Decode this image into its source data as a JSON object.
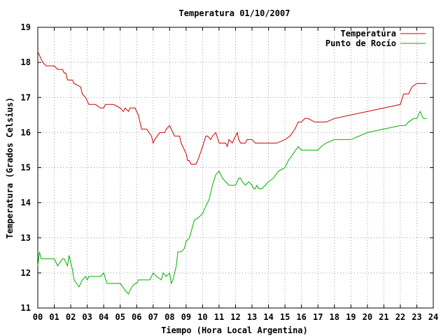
{
  "chart_data": {
    "type": "line",
    "title": "Temperatura 01/10/2007",
    "xlabel": "Tiempo (Hora Local Argentina)",
    "ylabel": "Temperatura (Grados Celsius)",
    "xlim": [
      0,
      24
    ],
    "ylim": [
      11,
      19
    ],
    "x_ticks": [
      "00",
      "01",
      "02",
      "03",
      "04",
      "05",
      "06",
      "07",
      "08",
      "09",
      "10",
      "11",
      "12",
      "13",
      "14",
      "15",
      "16",
      "17",
      "18",
      "19",
      "20",
      "21",
      "22",
      "23",
      "24"
    ],
    "y_ticks": [
      "11",
      "12",
      "13",
      "14",
      "15",
      "16",
      "17",
      "18",
      "19"
    ],
    "grid": true,
    "legend_position": "top-right",
    "series": [
      {
        "name": "Temperatura",
        "color": "#cc0000",
        "x": [
          0.0,
          0.1,
          0.2,
          0.3,
          0.5,
          0.7,
          1.0,
          1.2,
          1.5,
          1.6,
          1.7,
          1.8,
          2.1,
          2.2,
          2.6,
          2.7,
          2.9,
          3.1,
          3.2,
          3.5,
          3.8,
          4.0,
          4.1,
          4.4,
          4.6,
          5.0,
          5.2,
          5.3,
          5.5,
          5.6,
          5.9,
          6.1,
          6.3,
          6.5,
          6.6,
          6.9,
          7.0,
          7.1,
          7.4,
          7.5,
          7.6,
          7.7,
          7.8,
          8.0,
          8.3,
          8.6,
          8.7,
          9.0,
          9.1,
          9.2,
          9.3,
          9.4,
          9.5,
          9.6,
          9.7,
          10.0,
          10.2,
          10.3,
          10.5,
          10.6,
          10.8,
          11.0,
          11.1,
          11.2,
          11.3,
          11.4,
          11.5,
          11.6,
          11.8,
          12.0,
          12.1,
          12.2,
          12.3,
          12.4,
          12.5,
          12.6,
          12.7,
          12.8,
          13.0,
          13.2,
          13.3,
          13.4,
          13.6,
          13.8,
          14.0,
          14.5,
          15.0,
          15.3,
          15.6,
          15.8,
          16.0,
          16.2,
          16.4,
          16.8,
          17.0,
          17.2,
          17.5,
          18.0,
          19.0,
          20.0,
          21.0,
          22.0,
          22.2,
          22.5,
          22.7,
          23.0,
          23.2,
          23.4,
          23.6
        ],
        "values": [
          18.3,
          18.2,
          18.1,
          18.0,
          17.9,
          17.9,
          17.9,
          17.8,
          17.8,
          17.7,
          17.7,
          17.5,
          17.5,
          17.4,
          17.3,
          17.1,
          17.0,
          16.8,
          16.8,
          16.8,
          16.7,
          16.7,
          16.8,
          16.8,
          16.8,
          16.7,
          16.6,
          16.7,
          16.6,
          16.7,
          16.7,
          16.5,
          16.1,
          16.1,
          16.1,
          15.9,
          15.7,
          15.8,
          16.0,
          16.0,
          16.0,
          16.0,
          16.1,
          16.2,
          15.9,
          15.9,
          15.7,
          15.4,
          15.2,
          15.2,
          15.1,
          15.1,
          15.1,
          15.1,
          15.2,
          15.6,
          15.9,
          15.9,
          15.8,
          15.9,
          16.0,
          15.7,
          15.7,
          15.7,
          15.7,
          15.7,
          15.6,
          15.8,
          15.7,
          15.9,
          16.0,
          15.8,
          15.7,
          15.7,
          15.7,
          15.7,
          15.8,
          15.8,
          15.8,
          15.7,
          15.7,
          15.7,
          15.7,
          15.7,
          15.7,
          15.7,
          15.8,
          15.9,
          16.1,
          16.3,
          16.3,
          16.4,
          16.4,
          16.3,
          16.3,
          16.3,
          16.3,
          16.4,
          16.5,
          16.6,
          16.7,
          16.8,
          17.1,
          17.1,
          17.3,
          17.4,
          17.4,
          17.4,
          17.4
        ]
      },
      {
        "name": "Punto de Rocío",
        "color": "#00b000",
        "x": [
          0.0,
          0.1,
          0.2,
          0.3,
          0.5,
          0.7,
          1.0,
          1.2,
          1.5,
          1.6,
          1.7,
          1.8,
          1.9,
          2.1,
          2.2,
          2.5,
          2.7,
          2.9,
          3.0,
          3.1,
          3.2,
          3.5,
          3.8,
          4.0,
          4.2,
          4.5,
          4.8,
          5.0,
          5.3,
          5.5,
          5.6,
          5.7,
          5.9,
          6.0,
          6.1,
          6.2,
          6.4,
          6.6,
          6.8,
          7.0,
          7.2,
          7.5,
          7.6,
          7.8,
          8.0,
          8.1,
          8.2,
          8.3,
          8.4,
          8.5,
          8.7,
          8.9,
          9.0,
          9.2,
          9.5,
          9.8,
          10.0,
          10.2,
          10.4,
          10.6,
          10.8,
          11.0,
          11.2,
          11.4,
          11.6,
          11.8,
          12.0,
          12.2,
          12.3,
          12.4,
          12.6,
          12.8,
          13.0,
          13.1,
          13.2,
          13.3,
          13.4,
          13.6,
          13.8,
          14.0,
          14.3,
          14.6,
          15.0,
          15.2,
          15.5,
          15.8,
          16.0,
          16.2,
          16.4,
          16.6,
          17.0,
          17.2,
          17.5,
          18.0,
          19.0,
          20.0,
          21.0,
          22.0,
          22.3,
          22.5,
          22.8,
          23.0,
          23.2,
          23.4,
          23.6
        ],
        "values": [
          12.2,
          12.6,
          12.4,
          12.4,
          12.4,
          12.4,
          12.4,
          12.2,
          12.4,
          12.4,
          12.3,
          12.2,
          12.5,
          12.1,
          11.8,
          11.6,
          11.8,
          11.9,
          11.8,
          11.9,
          11.9,
          11.9,
          11.9,
          12.0,
          11.7,
          11.7,
          11.7,
          11.7,
          11.5,
          11.4,
          11.5,
          11.6,
          11.7,
          11.7,
          11.8,
          11.8,
          11.8,
          11.8,
          11.8,
          12.0,
          11.9,
          11.8,
          12.0,
          11.9,
          12.0,
          11.7,
          11.8,
          12.0,
          12.2,
          12.6,
          12.6,
          12.7,
          12.9,
          13.0,
          13.5,
          13.6,
          13.7,
          13.9,
          14.1,
          14.5,
          14.8,
          14.9,
          14.7,
          14.6,
          14.5,
          14.5,
          14.5,
          14.7,
          14.7,
          14.6,
          14.5,
          14.6,
          14.5,
          14.4,
          14.4,
          14.5,
          14.4,
          14.4,
          14.5,
          14.6,
          14.7,
          14.9,
          15.0,
          15.2,
          15.4,
          15.6,
          15.5,
          15.5,
          15.5,
          15.5,
          15.5,
          15.6,
          15.7,
          15.8,
          15.8,
          16.0,
          16.1,
          16.2,
          16.2,
          16.3,
          16.4,
          16.4,
          16.6,
          16.4,
          16.4
        ]
      }
    ]
  }
}
